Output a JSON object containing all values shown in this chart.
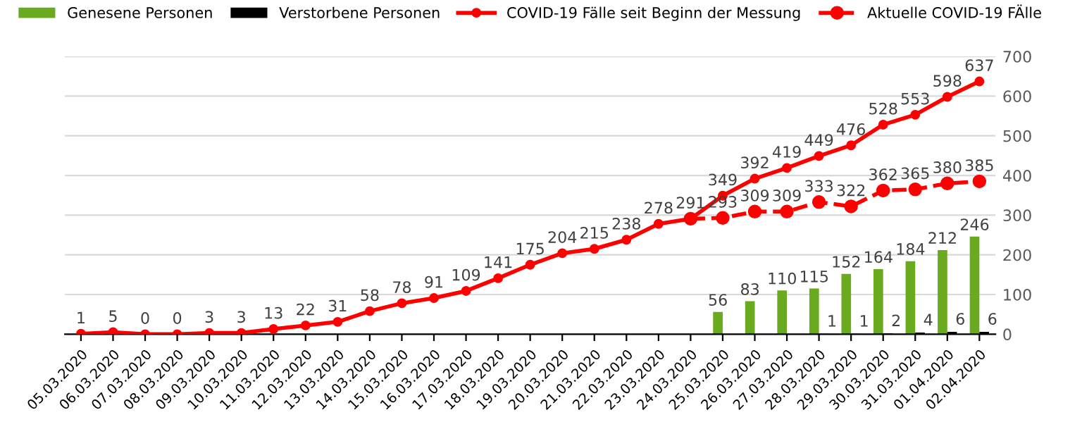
{
  "chart_data": {
    "type": "bar",
    "categories": [
      "05.03.2020",
      "06.03.2020",
      "07.03.2020",
      "08.03.2020",
      "09.03.2020",
      "10.03.2020",
      "11.03.2020",
      "12.03.2020",
      "13.03.2020",
      "14.03.2020",
      "15.03.2020",
      "16.03.2020",
      "17.03.2020",
      "18.03.2020",
      "19.03.2020",
      "20.03.2020",
      "21.03.2020",
      "22.03.2020",
      "23.03.2020",
      "24.03.2020",
      "25.03.2020",
      "26.03.2020",
      "27.03.2020",
      "28.03.2020",
      "29.03.2020",
      "30.03.2020",
      "31.03.2020",
      "01.04.2020",
      "02.04.2020"
    ],
    "series": [
      {
        "name": "Genesene Personen",
        "color": "#6aaa1e",
        "values": [
          null,
          null,
          null,
          null,
          null,
          null,
          null,
          null,
          null,
          null,
          null,
          null,
          null,
          null,
          null,
          null,
          null,
          null,
          null,
          null,
          56,
          83,
          110,
          115,
          152,
          164,
          184,
          212,
          246
        ],
        "value_labels": [
          null,
          null,
          null,
          null,
          null,
          null,
          null,
          null,
          null,
          null,
          null,
          null,
          null,
          null,
          null,
          null,
          null,
          null,
          null,
          null,
          "56",
          "83",
          "110",
          "115",
          "152",
          "164",
          "184",
          "212",
          "246"
        ]
      },
      {
        "name": "Verstorbene Personen",
        "color": "#000000",
        "values": [
          null,
          null,
          null,
          null,
          null,
          null,
          null,
          null,
          null,
          null,
          null,
          null,
          null,
          null,
          null,
          null,
          null,
          null,
          null,
          null,
          null,
          null,
          null,
          1,
          1,
          2,
          4,
          6,
          6
        ],
        "value_labels": [
          null,
          null,
          null,
          null,
          null,
          null,
          null,
          null,
          null,
          null,
          null,
          null,
          null,
          null,
          null,
          null,
          null,
          null,
          null,
          null,
          null,
          null,
          null,
          "1",
          "1",
          "2",
          "4",
          "6",
          "6"
        ]
      },
      {
        "name": "COVID-19 Fälle seit Beginn der Messung",
        "type": "line",
        "color": "#ff0000",
        "line_style": "solid",
        "marker": "circle",
        "values": [
          1,
          5,
          0,
          0,
          3,
          3,
          13,
          22,
          31,
          58,
          78,
          91,
          109,
          141,
          175,
          204,
          215,
          238,
          278,
          291,
          349,
          392,
          419,
          449,
          476,
          528,
          553,
          598,
          637
        ],
        "value_labels": [
          "1",
          "5",
          "0",
          "0",
          "3",
          "3",
          "13",
          "22",
          "31",
          "58",
          "78",
          "91",
          "109",
          "141",
          "175",
          "204",
          "215",
          "238",
          "278",
          "291",
          "349",
          "392",
          "419",
          "449",
          "476",
          "528",
          "553",
          "598",
          "637"
        ]
      },
      {
        "name": "Aktuelle COVID-19 FÄlle",
        "type": "line",
        "color": "#ff0000",
        "line_style": "dashed",
        "marker": "circle",
        "values": [
          null,
          null,
          null,
          null,
          null,
          null,
          null,
          null,
          null,
          null,
          null,
          null,
          null,
          null,
          null,
          null,
          null,
          null,
          null,
          291,
          293,
          309,
          309,
          333,
          322,
          362,
          365,
          380,
          385
        ],
        "value_labels": [
          null,
          null,
          null,
          null,
          null,
          null,
          null,
          null,
          null,
          null,
          null,
          null,
          null,
          null,
          null,
          null,
          null,
          null,
          null,
          null,
          "293",
          "309",
          "309",
          "333",
          "322",
          "362",
          "365",
          "380",
          "385"
        ]
      }
    ],
    "ylim": [
      0,
      700
    ],
    "yticks": [
      0,
      100,
      200,
      300,
      400,
      500,
      600,
      700
    ],
    "grid": "y",
    "legend": "top"
  }
}
